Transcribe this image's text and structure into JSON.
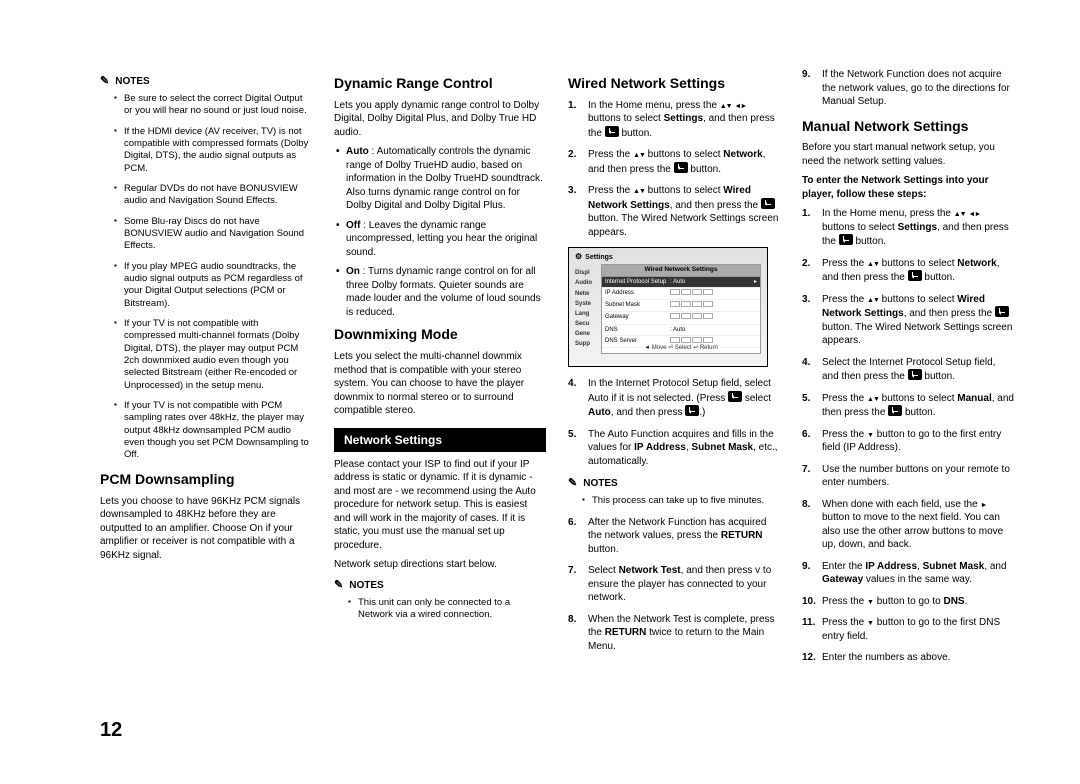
{
  "page_number": "12",
  "col1": {
    "notes_label": "NOTES",
    "notes": [
      "Be sure to select the correct Digital Output or you will hear no sound or just loud noise.",
      "If the HDMI device (AV receiver, TV) is not compatible with compressed formats (Dolby Digital, DTS), the audio signal outputs as PCM.",
      "Regular DVDs do not have BONUSVIEW audio and Navigation Sound Effects.",
      "Some Blu-ray Discs do not have BONUSVIEW audio and Navigation Sound Effects.",
      "If you play MPEG audio soundtracks, the audio signal outputs as PCM regardless of your Digital Output selections (PCM or Bitstream).",
      "If your TV is not compatible with compressed multi-channel formats (Dolby Digital, DTS), the player may output PCM 2ch downmixed audio even though you selected Bitstream (either Re-encoded or Unprocessed) in the setup menu.",
      "If your TV is not compatible with PCM sampling rates over 48kHz, the player may output 48kHz downsampled PCM audio even though you set PCM Downsampling to Off."
    ],
    "h_pcm": "PCM Downsampling",
    "pcm_desc": "Lets you choose to have 96KHz PCM signals downsampled to 48KHz before they are outputted to an amplifier. Choose On if your amplifier or receiver is not compatible with a 96KHz signal."
  },
  "col2": {
    "h_drc": "Dynamic Range Control",
    "drc_intro": "Lets you apply dynamic range control to Dolby Digital, Dolby Digital Plus, and Dolby True HD audio.",
    "drc_auto": "Auto : Automatically controls the dynamic range of Dolby TrueHD audio, based on information in the Dolby TrueHD soundtrack.\nAlso turns dynamic range control on for Dolby Digital and Dolby Digital Plus.",
    "drc_off": "Off : Leaves the dynamic range uncompressed, letting you hear the original sound.",
    "drc_on": "On : Turns dynamic range control on for all three Dolby formats. Quieter sounds are made louder and the volume of loud sounds is reduced.",
    "h_dm": "Downmixing Mode",
    "dm_desc": "Lets you select the multi-channel downmix method that is compatible with your stereo system. You can choose to have the player downmix to normal stereo or to surround compatible stereo.",
    "net_hdr": "Network Settings",
    "net_desc": "Please contact your ISP to find out if your IP address is static or dynamic. If it is dynamic - and most are - we recommend using the Auto procedure for network setup. This is easiest and will work in the majority of cases. If it is static, you must use the manual set up procedure.",
    "net_desc2": "Network setup directions start below.",
    "notes_label": "NOTES",
    "net_note": "This unit can only be connected to a Network via a wired connection."
  },
  "col3": {
    "h_wired": "Wired Network Settings",
    "s1": "In the Home menu, press the",
    "s1b": "buttons to select Settings, and then press the",
    "s1c": "button.",
    "s2": "Press the",
    "s2b": "buttons to select Network, and then press the",
    "s2c": "button.",
    "s3": "Press the",
    "s3b": "buttons to select Wired Network Settings, and then press the",
    "s3c": "button. The Wired Network Settings screen appears.",
    "screen": {
      "title": "Settings",
      "panel_title": "Wired Network Settings",
      "side": [
        "Displ",
        "Audio",
        "Netw",
        "Syste",
        "Lang",
        "Secu",
        "Gene",
        "Supp"
      ],
      "rows": [
        {
          "label": "Internet Protocol Setup",
          "val": ": Auto",
          "hi": true
        },
        {
          "label": "IP Address",
          "val": "boxes"
        },
        {
          "label": "Subnet Mask",
          "val": "boxes"
        },
        {
          "label": "Gateway",
          "val": "boxes"
        },
        {
          "label": "DNS",
          "val": ": Auto"
        },
        {
          "label": "DNS Server",
          "val": "boxes"
        }
      ],
      "foot": "◄ Move   ⏎ Select   ↩ Return"
    },
    "s4": "In the Internet Protocol Setup field, select Auto if it is not selected. (Press",
    "s4b": "select Auto, and then press",
    "s4c": ".)",
    "s5": "The Auto Function acquires and fills in the values for IP Address, Subnet Mask, etc., automatically.",
    "notes_label": "NOTES",
    "note5": "This process can take up to five minutes.",
    "s6": "After the Network Function has acquired the network values, press the RETURN button.",
    "s7": "Select Network Test, and then press v to ensure the player has connected to your network.",
    "s8": "When the Network Test is complete, press the RETURN twice to return to the Main Menu."
  },
  "col4": {
    "s9": "If the Network Function does not acquire the network values, go to the directions for Manual Setup.",
    "h_manual": "Manual Network Settings",
    "manual_intro": "Before you start manual network setup, you need the network setting values.",
    "manual_bold": "To enter the Network Settings into your player, follow these steps:",
    "m1": "In the Home menu, press the",
    "m1b": "buttons to select Settings, and then press the",
    "m1c": "button.",
    "m2": "Press the",
    "m2b": "buttons to select Network, and then press the",
    "m2c": "button.",
    "m3": "Press the",
    "m3b": "buttons to select Wired Network Settings, and then press the",
    "m3c": "button. The Wired Network Settings screen appears.",
    "m4": "Select the Internet Protocol Setup field, and then press the",
    "m4b": "button.",
    "m5": "Press the",
    "m5b": "buttons to select Manual, and then press the",
    "m5c": "button.",
    "m6": "Press the",
    "m6b": "button to go to the first entry field (IP Address).",
    "m7": "Use the number buttons on your remote to enter numbers.",
    "m8": "When done with each field, use the",
    "m8b": "button to move to the next field. You can also use the other arrow buttons to move up, down, and back.",
    "m9": "Enter the IP Address, Subnet Mask, and Gateway values in the same way.",
    "m10": "Press the",
    "m10b": "button to go to DNS.",
    "m11": "Press the",
    "m11b": "button to go to the first DNS entry field.",
    "m12": "Enter the numbers as above."
  }
}
